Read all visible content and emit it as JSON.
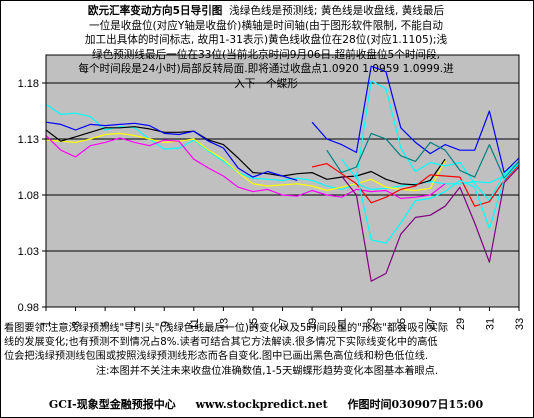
{
  "title": {
    "main": "欧元汇率变动方向5日导引图",
    "line1": "浅绿色线是预测线; 黄色线是收盘线, 黄线最后",
    "line2": "一位是收盘位(对应Y轴是收盘价)横轴是时间轴(由于图形软件限制, 不能自动",
    "line3": "加工出具体的时间标志, 故用1-31表示)黄色线收盘位在28位(对应1.1105);浅",
    "line4": "绿色预测线最后一位在33位(当前北京时间9月06日.超前收盘位5个时间段,",
    "line5": "每个时间段是24小时)局部反转局面.即将通过收盘点1.0920 1.0959 1.0999.进",
    "line6": "入下一个蝶形"
  },
  "notes": {
    "line1": "看图要领:注意浅绿预测线\"导引头\"(浅绿色线最后一位)的变化以及5时间段里的\"形态\"都会吸引实际",
    "line2": "线的发展变化;也有预测不到情况占8%.读者可结合其它方法解读.很多情况下实际线变化中的高低",
    "line3": "位会把浅绿预测线包围或按照浅绿预测线形态而各自变化.图中已画出黑色高位线和粉色低位线.",
    "line4": "注:本图并不关注未来收盘位准确数值,1-5天蝴蝶形趋势变化本图基本着眼点."
  },
  "footer": {
    "left": "GCI-现象型金融预报中心",
    "site": "www.stockpredict.net",
    "time": "作图时间030907日15:00"
  },
  "colors": {
    "plot_bg": "#c0c0c0",
    "gridline": "#000000",
    "light_green": "#00ffff",
    "yellow": "#ffff00",
    "black_high": "#000000",
    "pink_low": "#ff00ff",
    "blue": "#0000ff",
    "red": "#ff0000",
    "teal": "#008080",
    "purple": "#800080"
  },
  "chart_data": {
    "type": "line",
    "x_ticks": [
      1,
      3,
      5,
      7,
      9,
      11,
      13,
      15,
      17,
      19,
      21,
      23,
      25,
      27,
      29,
      31,
      33
    ],
    "y_ticks": [
      "1.18",
      "1.13",
      "1.08",
      "1.03",
      "0.98"
    ],
    "ylim": [
      0.98,
      1.205
    ],
    "xlim": [
      1,
      33
    ],
    "grid": "horizontal",
    "series": [
      {
        "color_key": "light_green",
        "x": [
          1,
          2,
          3,
          4,
          5,
          6,
          7,
          8,
          9,
          10,
          11,
          12,
          13,
          14,
          15,
          16,
          17,
          18,
          19,
          20,
          21,
          22,
          23,
          24,
          25,
          26,
          27,
          28,
          29,
          30,
          31,
          32,
          33
        ],
        "y": [
          1.161,
          1.152,
          1.153,
          1.15,
          1.138,
          1.141,
          1.14,
          1.13,
          1.121,
          1.122,
          1.129,
          1.119,
          1.11,
          1.1,
          1.095,
          1.094,
          1.093,
          1.095,
          1.093,
          1.088,
          1.085,
          1.09,
          1.085,
          1.086,
          1.088,
          1.09,
          1.092,
          1.09,
          1.09,
          1.092,
          1.091,
          1.097,
          1.108
        ]
      },
      {
        "color_key": "yellow",
        "x": [
          1,
          2,
          3,
          4,
          5,
          6,
          7,
          8,
          9,
          10,
          11,
          12,
          13,
          14,
          15,
          16,
          17,
          18,
          19,
          20,
          21,
          22,
          23,
          24,
          25,
          26,
          27,
          28
        ],
        "y": [
          1.129,
          1.128,
          1.127,
          1.13,
          1.134,
          1.135,
          1.133,
          1.13,
          1.127,
          1.128,
          1.13,
          1.12,
          1.112,
          1.1,
          1.09,
          1.088,
          1.089,
          1.09,
          1.088,
          1.084,
          1.087,
          1.09,
          1.094,
          1.087,
          1.085,
          1.084,
          1.086,
          1.1105
        ]
      },
      {
        "color_key": "pink_low",
        "x": [
          1,
          2,
          3,
          4,
          5,
          6,
          7,
          8,
          9,
          10,
          11,
          12,
          13,
          14,
          15,
          16,
          17,
          18,
          19,
          20,
          21,
          22,
          23,
          24,
          25,
          26,
          27,
          28
        ],
        "y": [
          1.133,
          1.12,
          1.114,
          1.124,
          1.127,
          1.131,
          1.127,
          1.124,
          1.129,
          1.128,
          1.112,
          1.104,
          1.097,
          1.087,
          1.083,
          1.085,
          1.08,
          1.079,
          1.084,
          1.08,
          1.078,
          1.085,
          1.083,
          1.084,
          1.077,
          1.078,
          1.08,
          1.09
        ]
      },
      {
        "color_key": "black_high",
        "x": [
          1,
          2,
          3,
          4,
          5,
          6,
          7,
          8,
          9,
          10,
          11,
          12,
          13,
          14,
          15,
          16,
          17,
          18,
          19,
          20,
          21,
          22,
          23,
          24,
          25,
          26,
          27,
          28
        ],
        "y": [
          1.138,
          1.128,
          1.132,
          1.136,
          1.14,
          1.14,
          1.141,
          1.139,
          1.136,
          1.136,
          1.137,
          1.129,
          1.125,
          1.113,
          1.1,
          1.099,
          1.097,
          1.099,
          1.1,
          1.094,
          1.096,
          1.097,
          1.101,
          1.094,
          1.09,
          1.089,
          1.093,
          1.112
        ]
      },
      {
        "color_key": "blue",
        "x": [
          1,
          2,
          3,
          4,
          5,
          6,
          7,
          8,
          9,
          10,
          11,
          12,
          13,
          14,
          15,
          16,
          17,
          18
        ],
        "y": [
          1.145,
          1.143,
          1.138,
          1.143,
          1.142,
          1.143,
          1.144,
          1.142,
          1.135,
          1.134,
          1.137,
          1.128,
          1.122,
          1.104,
          1.096,
          1.101,
          1.097,
          1.093
        ]
      },
      {
        "color_key": "blue",
        "x": [
          19,
          20,
          21,
          22,
          23,
          24,
          25,
          26,
          27,
          28,
          29,
          30,
          31,
          32,
          33
        ],
        "y": [
          1.145,
          1.13,
          1.125,
          1.118,
          1.195,
          1.19,
          1.14,
          1.127,
          1.117,
          1.125,
          1.12,
          1.12,
          1.155,
          1.1,
          1.113
        ]
      },
      {
        "color_key": "light_green",
        "x": [
          21,
          22,
          23,
          24,
          25,
          26,
          27,
          28,
          29,
          30,
          31,
          32,
          33
        ],
        "y": [
          1.112,
          1.095,
          1.182,
          1.175,
          1.122,
          1.101,
          1.109,
          1.106,
          1.109,
          1.09,
          1.075,
          1.099,
          1.11
        ]
      },
      {
        "color_key": "red",
        "x": [
          19,
          20,
          21,
          22,
          23,
          24,
          25,
          26,
          27,
          28,
          29,
          30,
          31,
          32,
          33
        ],
        "y": [
          1.105,
          1.108,
          1.099,
          1.09,
          1.073,
          1.078,
          1.085,
          1.088,
          1.098,
          1.097,
          1.096,
          1.07,
          1.074,
          1.093,
          1.107
        ]
      },
      {
        "color_key": "teal",
        "x": [
          20,
          21,
          22,
          23,
          24,
          25,
          26,
          27,
          28,
          29,
          30,
          31,
          32,
          33
        ],
        "y": [
          1.12,
          1.1,
          1.105,
          1.135,
          1.13,
          1.115,
          1.11,
          1.127,
          1.12,
          1.102,
          1.096,
          1.125,
          1.095,
          1.11
        ]
      },
      {
        "color_key": "light_green",
        "x": [
          22,
          23,
          24,
          25,
          26,
          27,
          28,
          29,
          30,
          31,
          32,
          33
        ],
        "y": [
          1.1,
          1.04,
          1.037,
          1.055,
          1.075,
          1.077,
          1.083,
          1.093,
          1.087,
          1.05,
          1.094,
          1.108
        ]
      },
      {
        "color_key": "purple",
        "x": [
          21,
          22,
          23,
          24,
          25,
          26,
          27,
          28,
          29,
          30,
          31,
          32,
          33
        ],
        "y": [
          1.097,
          1.08,
          1.003,
          1.01,
          1.045,
          1.06,
          1.062,
          1.07,
          1.087,
          1.055,
          1.02,
          1.091,
          1.105
        ]
      }
    ]
  }
}
